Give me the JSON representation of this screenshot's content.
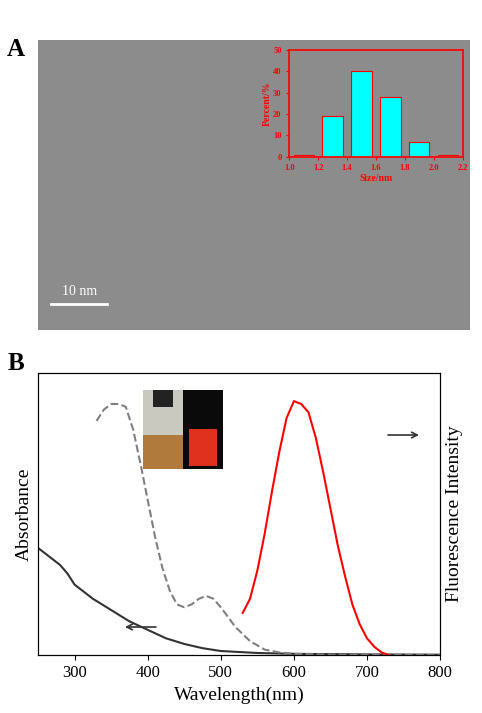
{
  "panel_labels": [
    "A",
    "B"
  ],
  "image": {
    "scale_bar": "10 nm"
  },
  "chart_data": [
    {
      "type": "bar",
      "x": [
        1.1,
        1.3,
        1.5,
        1.7,
        1.9,
        2.1
      ],
      "values": [
        1,
        19,
        40,
        28,
        7,
        1
      ],
      "color": "#00ffff",
      "xlabel": "Size/nm",
      "ylabel": "Percent/%",
      "xlim": [
        1.0,
        2.2
      ],
      "xticks": [
        1.0,
        1.2,
        1.4,
        1.6,
        1.8,
        2.0,
        2.2
      ],
      "ylim": [
        0,
        50
      ],
      "yticks": [
        0,
        10,
        20,
        30,
        40,
        50
      ]
    },
    {
      "type": "line",
      "xlabel": "Wavelength(nm)",
      "ylabel": "Absorbance",
      "y2label": "Fluorescence Intensity",
      "xlim": [
        250,
        800
      ],
      "xticks": [
        300,
        400,
        500,
        600,
        700,
        800
      ],
      "ylim": [
        0,
        1
      ],
      "y2lim": [
        0,
        1
      ],
      "tick_labels": "x",
      "series": [
        {
          "color": "#333333",
          "line_style": "solid",
          "x": [
            250,
            260,
            270,
            280,
            290,
            300,
            325,
            350,
            375,
            400,
            425,
            450,
            475,
            500,
            550,
            600,
            700,
            800
          ],
          "values": [
            0.38,
            0.36,
            0.34,
            0.32,
            0.29,
            0.25,
            0.2,
            0.16,
            0.12,
            0.09,
            0.06,
            0.04,
            0.025,
            0.015,
            0.008,
            0.005,
            0.003,
            0.002
          ]
        },
        {
          "color": "#808080",
          "line_style": "dashed",
          "axis": "y2",
          "x": [
            330,
            340,
            350,
            360,
            370,
            380,
            390,
            400,
            410,
            420,
            430,
            440,
            450,
            460,
            470,
            480,
            490,
            500,
            520,
            540,
            560,
            580,
            600,
            650,
            800
          ],
          "values": [
            0.83,
            0.87,
            0.89,
            0.89,
            0.88,
            0.8,
            0.68,
            0.55,
            0.42,
            0.31,
            0.23,
            0.18,
            0.17,
            0.18,
            0.2,
            0.21,
            0.2,
            0.17,
            0.1,
            0.05,
            0.02,
            0.01,
            0.005,
            0.002,
            0.0
          ]
        },
        {
          "color": "#ff0000",
          "line_style": "solid",
          "axis": "y2",
          "x": [
            530,
            540,
            550,
            560,
            570,
            580,
            590,
            600,
            610,
            620,
            630,
            640,
            650,
            660,
            670,
            680,
            690,
            700,
            710,
            720,
            730
          ],
          "values": [
            0.15,
            0.2,
            0.3,
            0.43,
            0.58,
            0.72,
            0.84,
            0.9,
            0.89,
            0.86,
            0.77,
            0.65,
            0.52,
            0.39,
            0.28,
            0.18,
            0.11,
            0.06,
            0.03,
            0.01,
            0.0
          ]
        }
      ]
    }
  ]
}
